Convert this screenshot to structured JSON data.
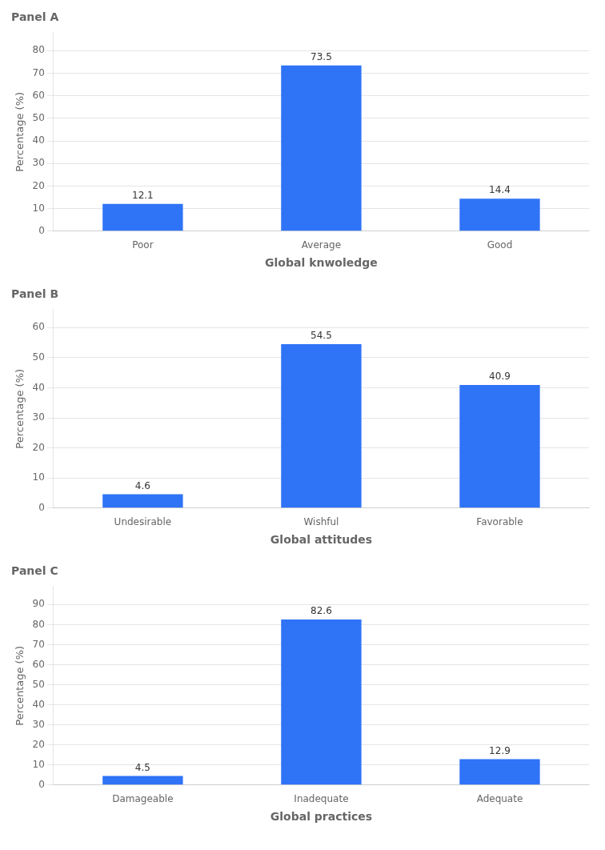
{
  "chart_data": [
    {
      "type": "bar",
      "title": "Panel A",
      "categories": [
        "Poor",
        "Average",
        "Good"
      ],
      "values": [
        12.1,
        73.5,
        14.4
      ],
      "x_label": "Global knwoledge",
      "y_label": "Percentage (%)",
      "color": "#2f73f7",
      "ylim": [
        0,
        88
      ],
      "yticks": [
        0,
        10,
        20,
        30,
        40,
        50,
        60,
        70,
        80
      ],
      "grid": true,
      "data_labels": true
    },
    {
      "type": "bar",
      "title": "Panel B",
      "categories": [
        "Undesirable",
        "Wishful",
        "Favorable"
      ],
      "values": [
        4.6,
        54.5,
        40.9
      ],
      "x_label": "Global attitudes",
      "y_label": "Percentage (%)",
      "color": "#2f73f7",
      "ylim": [
        0,
        66
      ],
      "yticks": [
        0,
        10,
        20,
        30,
        40,
        50,
        60
      ],
      "grid": true,
      "data_labels": true
    },
    {
      "type": "bar",
      "title": "Panel C",
      "categories": [
        "Damageable",
        "Inadequate",
        "Adequate"
      ],
      "values": [
        4.5,
        82.6,
        12.9
      ],
      "x_label": "Global practices",
      "y_label": "Percentage (%)",
      "color": "#2f73f7",
      "ylim": [
        0,
        99
      ],
      "yticks": [
        0,
        10,
        20,
        30,
        40,
        50,
        60,
        70,
        80,
        90
      ],
      "grid": true,
      "data_labels": true
    }
  ]
}
